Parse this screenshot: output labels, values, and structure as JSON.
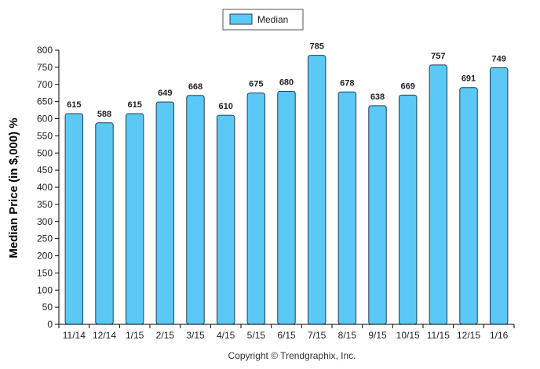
{
  "chart_data": {
    "type": "bar",
    "title": "",
    "xlabel": "",
    "ylabel": "Median Price (in $,000) %",
    "ylim": [
      0,
      800
    ],
    "y_ticks": [
      0,
      50,
      100,
      150,
      200,
      250,
      300,
      350,
      400,
      450,
      500,
      550,
      600,
      650,
      700,
      750,
      800
    ],
    "grid": false,
    "legend": {
      "position": "top-center",
      "entries": [
        "Median"
      ]
    },
    "categories": [
      "11/14",
      "12/14",
      "1/15",
      "2/15",
      "3/15",
      "4/15",
      "5/15",
      "6/15",
      "7/15",
      "8/15",
      "9/15",
      "10/15",
      "11/15",
      "12/15",
      "1/16"
    ],
    "series": [
      {
        "name": "Median",
        "values": [
          615,
          588,
          615,
          649,
          668,
          610,
          675,
          680,
          785,
          678,
          638,
          669,
          757,
          691,
          749
        ]
      }
    ],
    "colors": {
      "bar_fill": "#5bc8f5",
      "bar_stroke": "#1f3f5a",
      "axis": "#000000"
    }
  },
  "footer": {
    "copyright": "Copyright © Trendgraphix, Inc."
  }
}
